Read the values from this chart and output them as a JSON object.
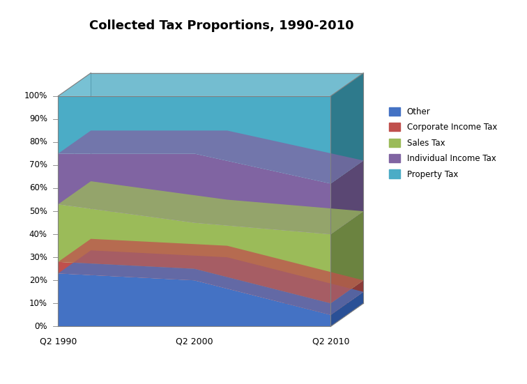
{
  "title": "Collected Tax Proportions, 1990-2010",
  "categories": [
    "Q2 1990",
    "Q2 2000",
    "Q2 2010"
  ],
  "series": [
    {
      "name": "Other",
      "color": "#4472C4",
      "dark_color": "#2A5096",
      "values": [
        0.23,
        0.2,
        0.05
      ]
    },
    {
      "name": "Corporate Income Tax",
      "color": "#C0504D",
      "dark_color": "#8B3A38",
      "values": [
        0.05,
        0.05,
        0.05
      ]
    },
    {
      "name": "Sales Tax",
      "color": "#9BBB59",
      "dark_color": "#6B8340",
      "values": [
        0.25,
        0.2,
        0.3
      ]
    },
    {
      "name": "Individual Income Tax",
      "color": "#8064A2",
      "dark_color": "#5A4773",
      "values": [
        0.22,
        0.3,
        0.22
      ]
    },
    {
      "name": "Property Tax",
      "color": "#4BACC6",
      "dark_color": "#2E7A8C",
      "values": [
        0.25,
        0.25,
        0.38
      ]
    }
  ],
  "yticks": [
    0.0,
    0.1,
    0.2,
    0.3,
    0.4,
    0.5,
    0.6,
    0.7,
    0.8,
    0.9,
    1.0
  ],
  "ytick_labels": [
    "0%",
    "10%",
    "20%",
    "30%",
    "40%",
    "50%",
    "60%",
    "70%",
    "80%",
    "90%",
    "100%"
  ],
  "background_color": "#FFFFFF",
  "title_fontsize": 13
}
